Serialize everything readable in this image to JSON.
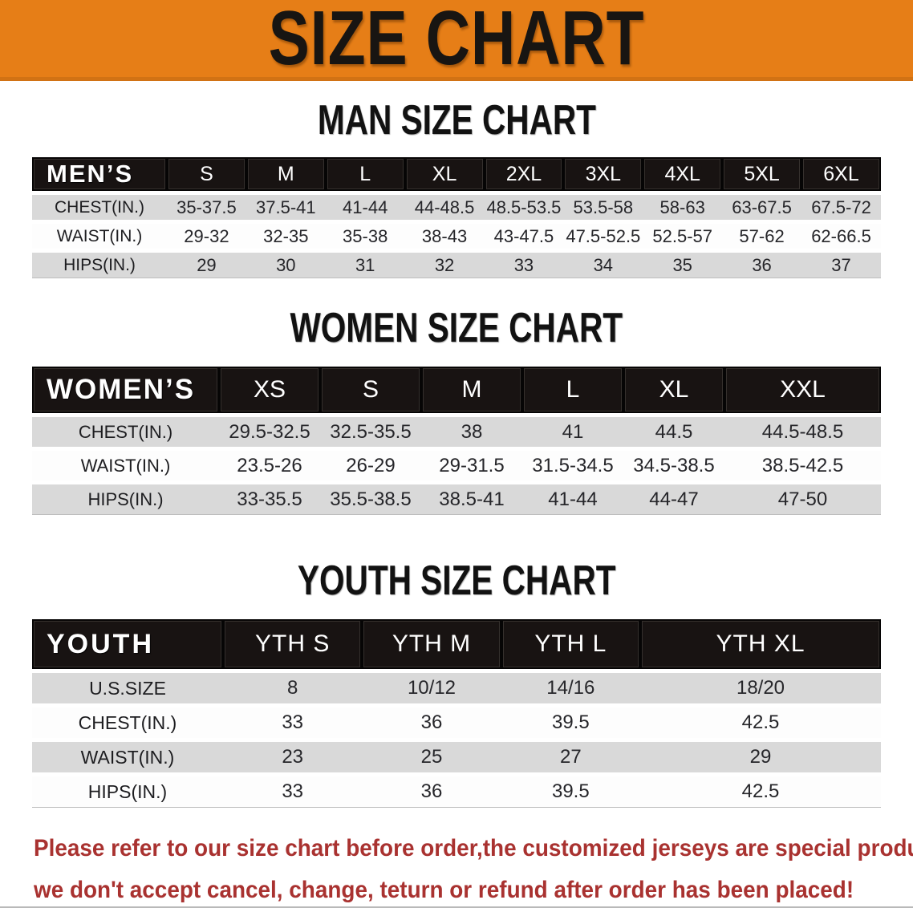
{
  "banner": {
    "title": "SIZE CHART",
    "background": "#e67e17",
    "text_color": "#181512"
  },
  "sections": {
    "men": {
      "heading": "MAN SIZE CHART",
      "table": {
        "header": [
          "MEN’S",
          "S",
          "M",
          "L",
          "XL",
          "2XL",
          "3XL",
          "4XL",
          "5XL",
          "6XL"
        ],
        "rows": [
          [
            "CHEST(IN.)",
            "35-37.5",
            "37.5-41",
            "41-44",
            "44-48.5",
            "48.5-53.5",
            "53.5-58",
            "58-63",
            "63-67.5",
            "67.5-72"
          ],
          [
            "WAIST(IN.)",
            "29-32",
            "32-35",
            "35-38",
            "38-43",
            "43-47.5",
            "47.5-52.5",
            "52.5-57",
            "57-62",
            "62-66.5"
          ],
          [
            "HIPS(IN.)",
            "29",
            "30",
            "31",
            "32",
            "33",
            "34",
            "35",
            "36",
            "37"
          ]
        ]
      }
    },
    "women": {
      "heading": "WOMEN SIZE CHART",
      "table": {
        "header": [
          "WOMEN’S",
          "XS",
          "S",
          "M",
          "L",
          "XL",
          "XXL"
        ],
        "rows": [
          [
            "CHEST(IN.)",
            "29.5-32.5",
            "32.5-35.5",
            "38",
            "41",
            "44.5",
            "44.5-48.5"
          ],
          [
            "WAIST(IN.)",
            "23.5-26",
            "26-29",
            "29-31.5",
            "31.5-34.5",
            "34.5-38.5",
            "38.5-42.5"
          ],
          [
            "HIPS(IN.)",
            "33-35.5",
            "35.5-38.5",
            "38.5-41",
            "41-44",
            "44-47",
            "47-50"
          ]
        ]
      }
    },
    "youth": {
      "heading": "YOUTH SIZE CHART",
      "table": {
        "header": [
          "YOUTH",
          "YTH S",
          "YTH M",
          "YTH L",
          "YTH XL"
        ],
        "rows": [
          [
            "U.S.SIZE",
            "8",
            "10/12",
            "14/16",
            "18/20"
          ],
          [
            "CHEST(IN.)",
            "33",
            "36",
            "39.5",
            "42.5"
          ],
          [
            "WAIST(IN.)",
            "23",
            "25",
            "27",
            "29"
          ],
          [
            "HIPS(IN.)",
            "33",
            "36",
            "39.5",
            "42.5"
          ]
        ]
      }
    }
  },
  "footer": {
    "line1": "Please refer to our size chart before order,the customized jerseys are special products,",
    "line2": "we don't accept cancel, change, teturn or refund after order has been placed!",
    "text_color": "#a93230"
  },
  "colors": {
    "band_gray": "#d9d9d9",
    "band_white": "#fdfdfd",
    "header_black": "#181312"
  }
}
